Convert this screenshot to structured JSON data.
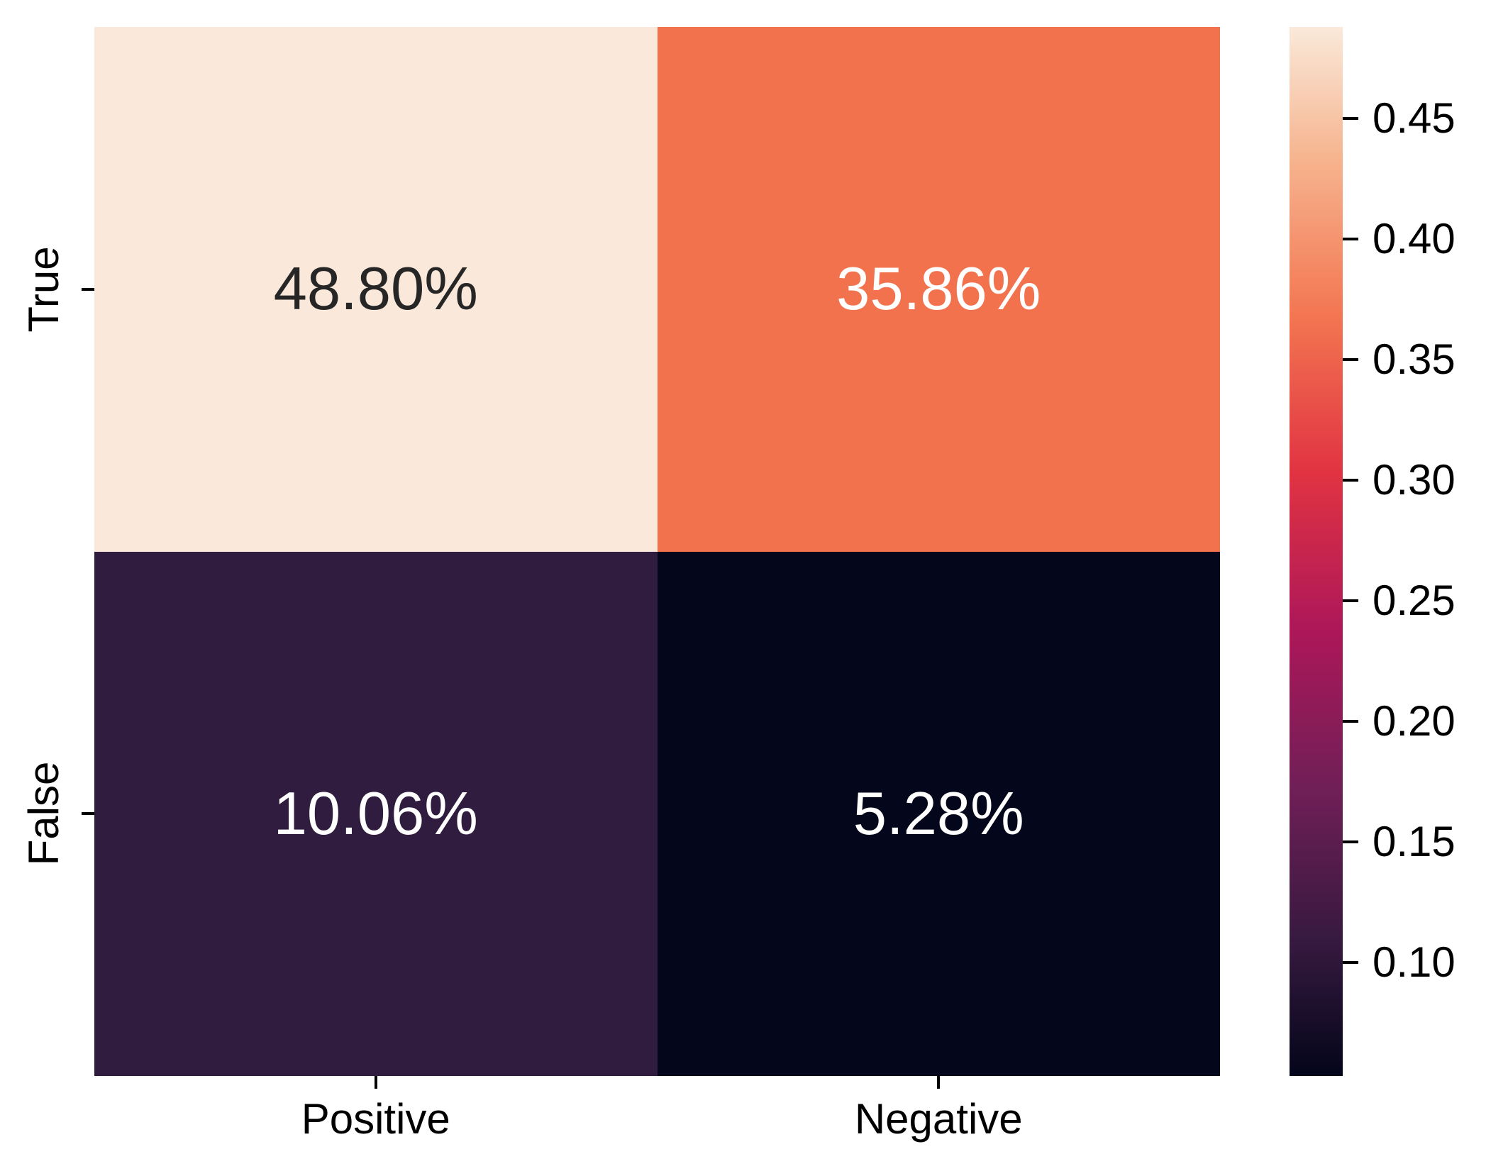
{
  "chart_data": {
    "type": "heatmap",
    "title": "",
    "xlabel": "",
    "ylabel": "",
    "x_categories": [
      "Positive",
      "Negative"
    ],
    "y_categories": [
      "True",
      "False"
    ],
    "values_percent": [
      [
        48.8,
        35.86
      ],
      [
        10.06,
        5.28
      ]
    ],
    "cells": [
      {
        "row": "True",
        "col": "Positive",
        "label": "48.80%",
        "value": 0.488,
        "bg": "#FAE9DA",
        "fg": "#262626"
      },
      {
        "row": "True",
        "col": "Negative",
        "label": "35.86%",
        "value": 0.3586,
        "bg": "#F3724E",
        "fg": "#FFFFFF"
      },
      {
        "row": "False",
        "col": "Positive",
        "label": "10.06%",
        "value": 0.1006,
        "bg": "#2F1C3E",
        "fg": "#FFFFFF"
      },
      {
        "row": "False",
        "col": "Negative",
        "label": "5.28%",
        "value": 0.0528,
        "bg": "#04061B",
        "fg": "#FFFFFF"
      }
    ],
    "colorbar": {
      "position": "right",
      "vmin": 0.0528,
      "vmax": 0.488,
      "tick_labels": [
        "0.10",
        "0.15",
        "0.20",
        "0.25",
        "0.30",
        "0.35",
        "0.40",
        "0.45"
      ],
      "ticks": [
        0.1,
        0.15,
        0.2,
        0.25,
        0.3,
        0.35,
        0.4,
        0.45
      ],
      "colormap": "rocket",
      "gradient": [
        {
          "pos": 0.0,
          "color": "#03051A"
        },
        {
          "pos": 0.125,
          "color": "#35193E"
        },
        {
          "pos": 0.275,
          "color": "#701F57"
        },
        {
          "pos": 0.425,
          "color": "#AD1759"
        },
        {
          "pos": 0.575,
          "color": "#E13342"
        },
        {
          "pos": 0.725,
          "color": "#F37651"
        },
        {
          "pos": 0.875,
          "color": "#F6B48F"
        },
        {
          "pos": 1.0,
          "color": "#FAE9DA"
        }
      ]
    },
    "grid": false,
    "axis_text_color": "#000000"
  }
}
